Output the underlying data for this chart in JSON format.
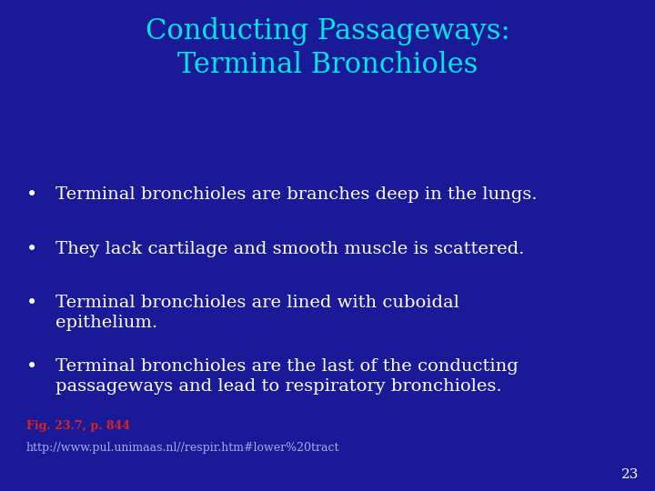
{
  "background_color": "#1a1a99",
  "title_line1": "Conducting Passageways:",
  "title_line2": "Terminal Bronchioles",
  "title_color": "#00e5e5",
  "title_fontsize": 22,
  "title_font": "serif",
  "bullet_points": [
    "Terminal bronchioles are branches deep in the lungs.",
    "They lack cartilage and smooth muscle is scattered.",
    "Terminal bronchioles are lined with cuboidal\nepithelium.",
    "Terminal bronchioles are the last of the conducting\npassageways and lead to respiratory bronchioles."
  ],
  "bullet_color": "#ffffff",
  "bullet_fontsize": 14,
  "bullet_font": "serif",
  "fig_ref": "Fig. 23.7, p. 844",
  "fig_ref_color": "#dd2222",
  "fig_ref_fontsize": 9,
  "url": "http://www.pul.unimaas.nl//respir.htm#lower%20tract",
  "url_color": "#aaaaee",
  "url_fontsize": 9,
  "page_number": "23",
  "page_number_color": "#ffffff",
  "page_number_fontsize": 11
}
